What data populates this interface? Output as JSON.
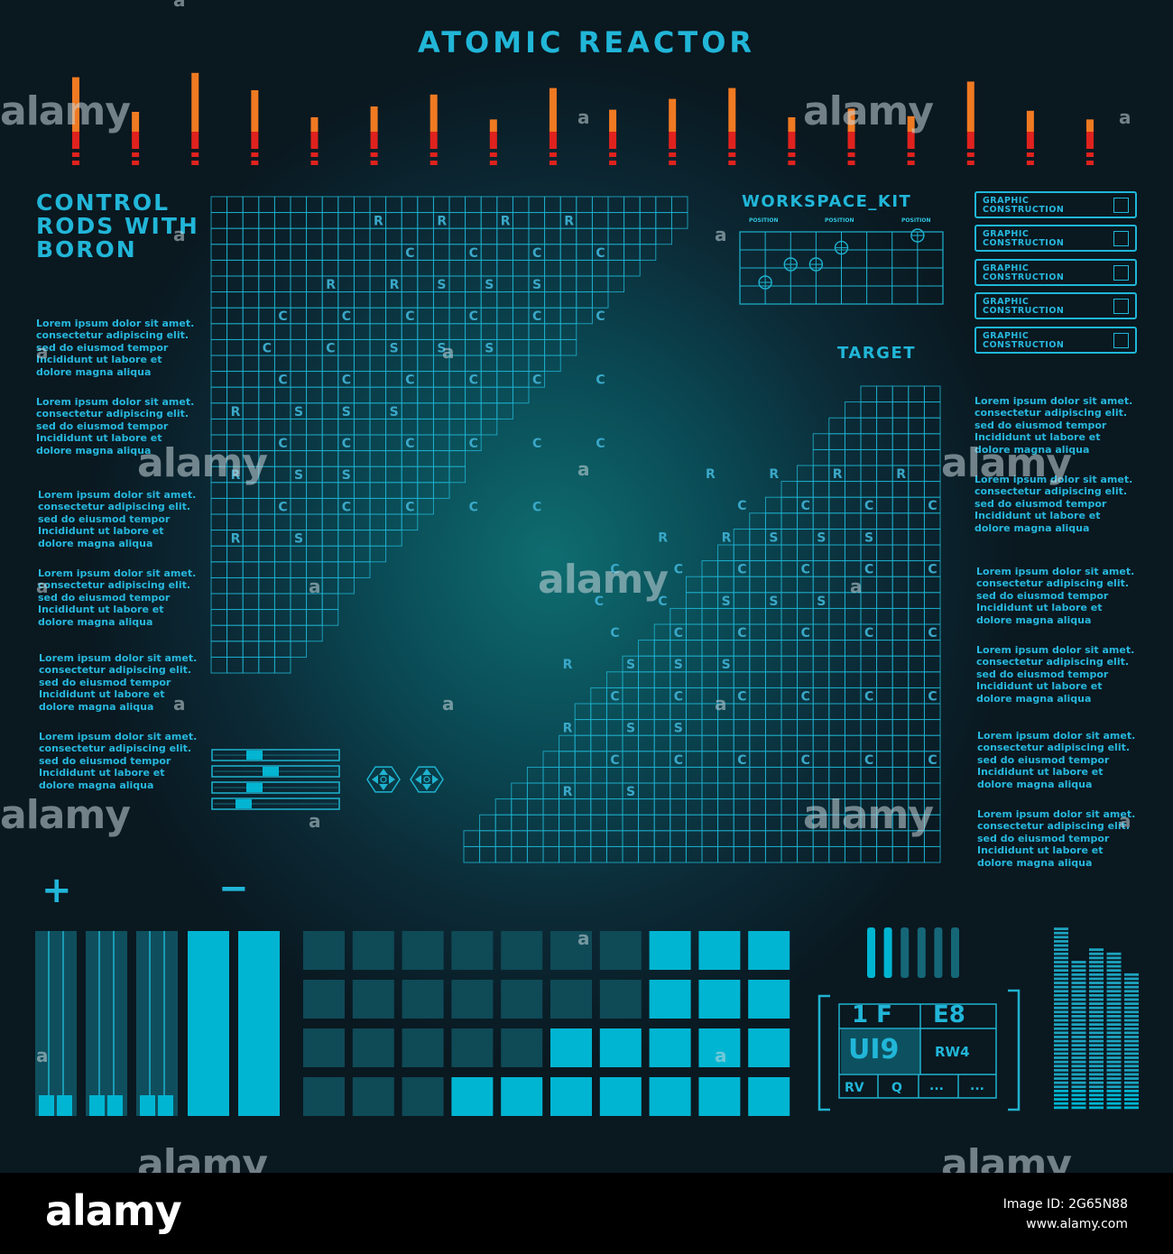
{
  "title": "ATOMIC REACTOR",
  "control_rods_title": "CONTROL RODS WITH BORON",
  "workspace_title": "WORKSPACE_KIT",
  "workspace_col_labels": [
    "POSITION",
    "POSITION",
    "POSITION"
  ],
  "target_title": "TARGET",
  "lorem": "Lorem ipsum dolor sit amet. consectetur adipiscing elit. sed do eiusmod tempor Incididunt ut labore et dolore magna aliqua",
  "graphic_buttons": [
    "GRAPHIC CONSTRUCTION",
    "GRAPHIC CONSTRUCTION",
    "GRAPHIC CONSTRUCTION",
    "GRAPHIC CONSTRUCTION",
    "GRAPHIC CONSTRUCTION"
  ],
  "plus_label": "+",
  "minus_label": "−",
  "panel": {
    "row1_left": "1 F",
    "row1_right": "E8",
    "row2_left": "UI9",
    "row2_right": "RW4",
    "row3": [
      "RV",
      "Q",
      "...",
      "..."
    ]
  },
  "top_bar_levels": [
    0.82,
    0.5,
    0.86,
    0.7,
    0.45,
    0.55,
    0.66,
    0.43,
    0.72,
    0.52,
    0.62,
    0.72,
    0.45,
    0.53,
    0.46,
    0.78,
    0.51,
    0.43
  ],
  "left_grid_letters": [
    {
      "row": 1,
      "cols": [
        {
          "c": 10,
          "l": "R"
        },
        {
          "c": 14,
          "l": "R"
        },
        {
          "c": 18,
          "l": "R"
        },
        {
          "c": 22,
          "l": "R"
        }
      ]
    },
    {
      "row": 3,
      "cols": [
        {
          "c": 12,
          "l": "C"
        },
        {
          "c": 16,
          "l": "C"
        },
        {
          "c": 20,
          "l": "C"
        },
        {
          "c": 24,
          "l": "C"
        }
      ]
    },
    {
      "row": 5,
      "cols": [
        {
          "c": 7,
          "l": "R"
        },
        {
          "c": 11,
          "l": "R"
        },
        {
          "c": 14,
          "l": "S"
        },
        {
          "c": 17,
          "l": "S"
        },
        {
          "c": 20,
          "l": "S"
        }
      ]
    },
    {
      "row": 7,
      "cols": [
        {
          "c": 4,
          "l": "C"
        },
        {
          "c": 8,
          "l": "C"
        },
        {
          "c": 12,
          "l": "C"
        },
        {
          "c": 16,
          "l": "C"
        },
        {
          "c": 20,
          "l": "C"
        },
        {
          "c": 24,
          "l": "C"
        }
      ]
    },
    {
      "row": 9,
      "cols": [
        {
          "c": 3,
          "l": "C"
        },
        {
          "c": 7,
          "l": "C"
        },
        {
          "c": 11,
          "l": "S"
        },
        {
          "c": 14,
          "l": "S"
        },
        {
          "c": 17,
          "l": "S"
        }
      ]
    },
    {
      "row": 11,
      "cols": [
        {
          "c": 4,
          "l": "C"
        },
        {
          "c": 8,
          "l": "C"
        },
        {
          "c": 12,
          "l": "C"
        },
        {
          "c": 16,
          "l": "C"
        },
        {
          "c": 20,
          "l": "C"
        },
        {
          "c": 24,
          "l": "C"
        }
      ]
    },
    {
      "row": 13,
      "cols": [
        {
          "c": 1,
          "l": "R"
        },
        {
          "c": 5,
          "l": "S"
        },
        {
          "c": 8,
          "l": "S"
        },
        {
          "c": 11,
          "l": "S"
        }
      ]
    },
    {
      "row": 15,
      "cols": [
        {
          "c": 4,
          "l": "C"
        },
        {
          "c": 8,
          "l": "C"
        },
        {
          "c": 12,
          "l": "C"
        },
        {
          "c": 16,
          "l": "C"
        },
        {
          "c": 20,
          "l": "C"
        },
        {
          "c": 24,
          "l": "C"
        }
      ]
    },
    {
      "row": 17,
      "cols": [
        {
          "c": 1,
          "l": "R"
        },
        {
          "c": 5,
          "l": "S"
        },
        {
          "c": 8,
          "l": "S"
        }
      ]
    },
    {
      "row": 19,
      "cols": [
        {
          "c": 4,
          "l": "C"
        },
        {
          "c": 8,
          "l": "C"
        },
        {
          "c": 12,
          "l": "C"
        },
        {
          "c": 16,
          "l": "C"
        },
        {
          "c": 20,
          "l": "C"
        }
      ]
    },
    {
      "row": 21,
      "cols": [
        {
          "c": 1,
          "l": "R"
        },
        {
          "c": 5,
          "l": "S"
        }
      ]
    }
  ],
  "right_grid_letters": [
    {
      "row": 5,
      "cols": [
        {
          "c": 15,
          "l": "R"
        },
        {
          "c": 19,
          "l": "R"
        },
        {
          "c": 23,
          "l": "R"
        },
        {
          "c": 27,
          "l": "R"
        }
      ]
    },
    {
      "row": 7,
      "cols": [
        {
          "c": 17,
          "l": "C"
        },
        {
          "c": 21,
          "l": "C"
        },
        {
          "c": 25,
          "l": "C"
        },
        {
          "c": 29,
          "l": "C"
        }
      ]
    },
    {
      "row": 9,
      "cols": [
        {
          "c": 12,
          "l": "R"
        },
        {
          "c": 16,
          "l": "R"
        },
        {
          "c": 19,
          "l": "S"
        },
        {
          "c": 22,
          "l": "S"
        },
        {
          "c": 25,
          "l": "S"
        }
      ]
    },
    {
      "row": 11,
      "cols": [
        {
          "c": 9,
          "l": "C"
        },
        {
          "c": 13,
          "l": "C"
        },
        {
          "c": 17,
          "l": "C"
        },
        {
          "c": 21,
          "l": "C"
        },
        {
          "c": 25,
          "l": "C"
        },
        {
          "c": 29,
          "l": "C"
        }
      ]
    },
    {
      "row": 13,
      "cols": [
        {
          "c": 8,
          "l": "C"
        },
        {
          "c": 12,
          "l": "C"
        },
        {
          "c": 16,
          "l": "S"
        },
        {
          "c": 19,
          "l": "S"
        },
        {
          "c": 22,
          "l": "S"
        }
      ]
    },
    {
      "row": 15,
      "cols": [
        {
          "c": 9,
          "l": "C"
        },
        {
          "c": 13,
          "l": "C"
        },
        {
          "c": 17,
          "l": "C"
        },
        {
          "c": 21,
          "l": "C"
        },
        {
          "c": 25,
          "l": "C"
        },
        {
          "c": 29,
          "l": "C"
        }
      ]
    },
    {
      "row": 17,
      "cols": [
        {
          "c": 6,
          "l": "R"
        },
        {
          "c": 10,
          "l": "S"
        },
        {
          "c": 13,
          "l": "S"
        },
        {
          "c": 16,
          "l": "S"
        }
      ]
    },
    {
      "row": 19,
      "cols": [
        {
          "c": 9,
          "l": "C"
        },
        {
          "c": 13,
          "l": "C"
        },
        {
          "c": 17,
          "l": "C"
        },
        {
          "c": 21,
          "l": "C"
        },
        {
          "c": 25,
          "l": "C"
        },
        {
          "c": 29,
          "l": "C"
        }
      ]
    },
    {
      "row": 21,
      "cols": [
        {
          "c": 6,
          "l": "R"
        },
        {
          "c": 10,
          "l": "S"
        },
        {
          "c": 13,
          "l": "S"
        }
      ]
    },
    {
      "row": 23,
      "cols": [
        {
          "c": 9,
          "l": "C"
        },
        {
          "c": 13,
          "l": "C"
        },
        {
          "c": 17,
          "l": "C"
        },
        {
          "c": 21,
          "l": "C"
        },
        {
          "c": 25,
          "l": "C"
        },
        {
          "c": 29,
          "l": "C"
        }
      ]
    },
    {
      "row": 25,
      "cols": [
        {
          "c": 6,
          "l": "R"
        },
        {
          "c": 10,
          "l": "S"
        }
      ]
    }
  ],
  "workspace_points": [
    {
      "col": 1,
      "level": 0.3
    },
    {
      "col": 2,
      "level": 0.55
    },
    {
      "col": 3,
      "level": 0.55
    },
    {
      "col": 4,
      "level": 0.78
    },
    {
      "col": 7,
      "level": 0.95
    }
  ],
  "slider_levels": [
    0.3,
    0.45,
    0.3,
    0.2
  ],
  "pad_lit_from": [
    7,
    7,
    5,
    3
  ],
  "small_bars_lit": 2,
  "eq_levels": [
    0.95,
    0.78,
    0.85,
    0.82,
    0.72
  ],
  "watermark": {
    "brand": "alamy",
    "glyph": "a",
    "footer_brand": "alamy",
    "image_id": "Image ID: 2G65N88",
    "site": "www.alamy.com"
  },
  "colors": {
    "accent": "#1fb7d8",
    "bright": "#00b5d2",
    "dim": "#0f4a57",
    "bar_orange": "#f07a22",
    "bar_red": "#e0221e"
  }
}
